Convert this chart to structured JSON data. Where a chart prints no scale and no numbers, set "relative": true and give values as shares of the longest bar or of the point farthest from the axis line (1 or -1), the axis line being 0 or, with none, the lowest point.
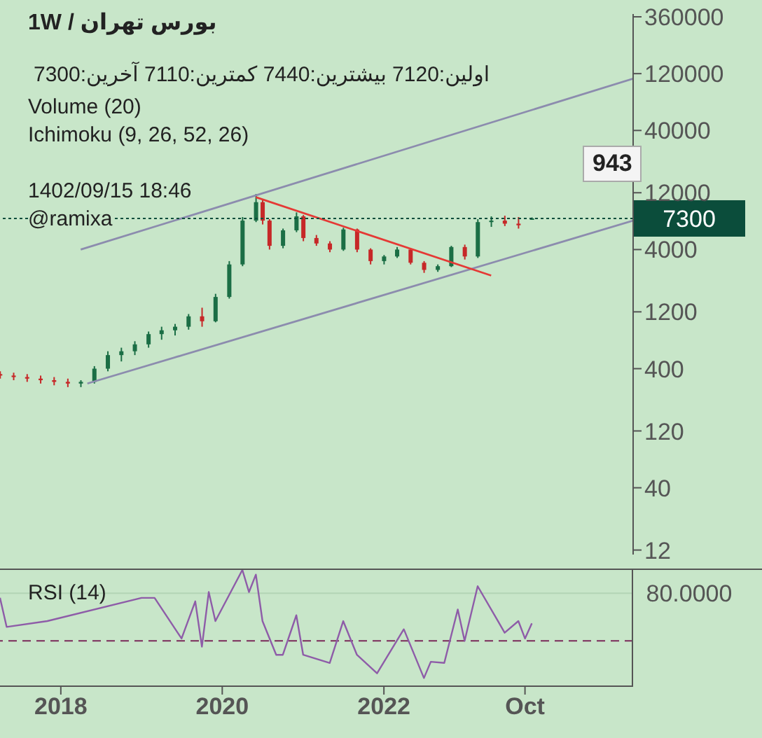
{
  "chart_data": [
    {
      "type": "candlestick",
      "title": "1W / بورس تهران",
      "subtitle": "اولین:7120  بیشترین:7440  کمترین:7110  آخرین:7300",
      "annotations": [
        "Volume (20)",
        "Ichimoku (9, 26, 52, 26)",
        "1402/09/15 18:46",
        "@ramixa",
        "943"
      ],
      "x": [
        "2017-04",
        "2017-06",
        "2017-08",
        "2017-10",
        "2017-12",
        "2018-02",
        "2018-04",
        "2018-06",
        "2018-08",
        "2018-10",
        "2018-12",
        "2019-02",
        "2019-04",
        "2019-06",
        "2019-08",
        "2019-10",
        "2019-12",
        "2020-02",
        "2020-04",
        "2020-06",
        "2020-07",
        "2020-08",
        "2020-10",
        "2020-12",
        "2021-01",
        "2021-03",
        "2021-05",
        "2021-07",
        "2021-09",
        "2021-11",
        "2022-01",
        "2022-03",
        "2022-05",
        "2022-07",
        "2022-09",
        "2022-11",
        "2023-01",
        "2023-03",
        "2023-05",
        "2023-07",
        "2023-09",
        "2023-11"
      ],
      "ohlc": [
        [
          360,
          380,
          330,
          350
        ],
        [
          350,
          370,
          320,
          340
        ],
        [
          340,
          360,
          310,
          330
        ],
        [
          330,
          350,
          300,
          320
        ],
        [
          320,
          340,
          290,
          310
        ],
        [
          310,
          330,
          280,
          300
        ],
        [
          300,
          320,
          280,
          310
        ],
        [
          310,
          420,
          300,
          400
        ],
        [
          400,
          560,
          380,
          520
        ],
        [
          520,
          600,
          460,
          560
        ],
        [
          560,
          680,
          520,
          640
        ],
        [
          640,
          820,
          600,
          780
        ],
        [
          780,
          900,
          700,
          840
        ],
        [
          840,
          950,
          760,
          900
        ],
        [
          900,
          1150,
          850,
          1100
        ],
        [
          1100,
          1300,
          900,
          1000
        ],
        [
          1000,
          1700,
          980,
          1600
        ],
        [
          1600,
          3200,
          1550,
          3000
        ],
        [
          3000,
          7500,
          2900,
          7000
        ],
        [
          7000,
          11700,
          6800,
          10000
        ],
        [
          10000,
          10500,
          6500,
          7000
        ],
        [
          7000,
          7200,
          4000,
          4300
        ],
        [
          4300,
          6000,
          4100,
          5800
        ],
        [
          5800,
          8200,
          5600,
          7600
        ],
        [
          7600,
          7800,
          4700,
          5000
        ],
        [
          5000,
          5300,
          4300,
          4500
        ],
        [
          4500,
          4700,
          3800,
          4000
        ],
        [
          4000,
          6100,
          3900,
          5900
        ],
        [
          5900,
          6000,
          3800,
          4000
        ],
        [
          4000,
          4100,
          3000,
          3200
        ],
        [
          3200,
          3600,
          3000,
          3500
        ],
        [
          3500,
          4200,
          3400,
          4000
        ],
        [
          4000,
          4100,
          3000,
          3100
        ],
        [
          3100,
          3200,
          2550,
          2700
        ],
        [
          2700,
          3000,
          2600,
          2900
        ],
        [
          2900,
          4300,
          2850,
          4200
        ],
        [
          4200,
          4400,
          3300,
          3500
        ],
        [
          3500,
          7200,
          3400,
          6800
        ],
        [
          6800,
          7600,
          6200,
          7000
        ],
        [
          7000,
          7700,
          6300,
          6600
        ],
        [
          6600,
          7500,
          6000,
          6400
        ],
        [
          7120,
          7440,
          7110,
          7300
        ]
      ],
      "colors": [
        "#c62828",
        "#c62828",
        "#c62828",
        "#c62828",
        "#c62828",
        "#c62828",
        "#1b6e45",
        "#1b6e45",
        "#1b6e45",
        "#1b6e45",
        "#1b6e45",
        "#1b6e45",
        "#1b6e45",
        "#1b6e45",
        "#1b6e45",
        "#c62828",
        "#1b6e45",
        "#1b6e45",
        "#1b6e45",
        "#1b6e45",
        "#c62828",
        "#c62828",
        "#1b6e45",
        "#1b6e45",
        "#c62828",
        "#c62828",
        "#c62828",
        "#1b6e45",
        "#c62828",
        "#c62828",
        "#1b6e45",
        "#1b6e45",
        "#c62828",
        "#c62828",
        "#1b6e45",
        "#1b6e45",
        "#c62828",
        "#1b6e45",
        "#1b6e45",
        "#c62828",
        "#c62828",
        "#1b6e45"
      ],
      "series": [
        {
          "type": "line",
          "color": "#8c8cae",
          "x": [
            "2018-04",
            "2025-02"
          ],
          "values": [
            4000,
            109000
          ]
        },
        {
          "type": "line",
          "color": "#8c8cae",
          "x": [
            "2018-05",
            "2025-02"
          ],
          "values": [
            300,
            7000
          ]
        },
        {
          "type": "line",
          "color": "#e53935",
          "x": [
            "2020-06",
            "2023-05"
          ],
          "values": [
            11000,
            2420
          ]
        }
      ],
      "ref_lines": [
        {
          "axis": "y",
          "value": 7300,
          "label": "7300",
          "color": "#0b4d3b",
          "line_style": "dotted"
        }
      ],
      "log": true,
      "xlim": [
        "2017-04",
        "2025-02"
      ],
      "xticks": [
        "2018-01",
        "2020-01",
        "2022-01",
        "2023-10"
      ],
      "ylim": [
        11,
        380000
      ],
      "yticks": [
        360000,
        120000,
        40000,
        12000,
        4000,
        1200,
        400,
        120,
        40,
        12
      ],
      "tick_labels": "y"
    },
    {
      "type": "line",
      "title": "RSI (14)",
      "relative": true,
      "series": [
        {
          "color": "#8e5ca8",
          "x": [
            "2017-04",
            "2017-05",
            "2017-11",
            "2019-01",
            "2019-03",
            "2019-07",
            "2019-09",
            "2019-10",
            "2019-11",
            "2019-12",
            "2020-04",
            "2020-05",
            "2020-06",
            "2020-07",
            "2020-09",
            "2020-10",
            "2020-12",
            "2021-01",
            "2021-05",
            "2021-07",
            "2021-09",
            "2021-12",
            "2022-04",
            "2022-07",
            "2022-08",
            "2022-10",
            "2022-12",
            "2023-01",
            "2023-03",
            "2023-06",
            "2023-07",
            "2023-09",
            "2023-10",
            "2023-11"
          ],
          "values": [
            0.76,
            0.51,
            0.56,
            0.76,
            0.76,
            0.41,
            0.73,
            0.34,
            0.81,
            0.56,
            1,
            0.81,
            0.96,
            0.56,
            0.27,
            0.27,
            0.61,
            0.27,
            0.2,
            0.56,
            0.27,
            0.11,
            0.49,
            0.07,
            0.21,
            0.2,
            0.66,
            0.39,
            0.86,
            0.56,
            0.46,
            0.56,
            0.41,
            0.54
          ]
        }
      ],
      "ref_lines": [
        {
          "axis": "y",
          "value": 0.8,
          "label": "80.0000",
          "color": "#b3d4b5"
        },
        {
          "axis": "y",
          "value": 0.39,
          "label": null,
          "color": "#7a2a5a",
          "line_style": "dashed"
        }
      ],
      "xlim": [
        "2017-04",
        "2025-02"
      ],
      "xticks": [
        {
          "value": "2018-01",
          "label": "2018"
        },
        {
          "value": "2020-01",
          "label": "2020"
        },
        {
          "value": "2022-01",
          "label": "2022"
        },
        {
          "value": "2023-10",
          "label": "Oct"
        }
      ],
      "tick_labels": "x"
    }
  ]
}
